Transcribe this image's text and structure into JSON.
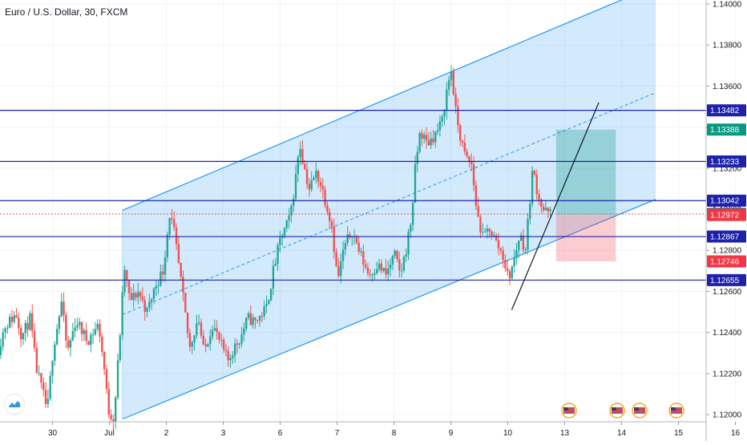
{
  "title": "Euro / U.S. Dollar, 30, FXCM",
  "chart_data": {
    "type": "candlestick",
    "ylim": [
      1.1197,
      1.1402
    ],
    "y_ticks": [
      "1.12000",
      "1.12200",
      "1.12400",
      "1.12600",
      "1.12800",
      "1.13000",
      "1.13200",
      "1.13400",
      "1.13600",
      "1.13800",
      "1.14000"
    ],
    "x_ticks": [
      {
        "label": "30",
        "day": -0.5
      },
      {
        "label": "Jul",
        "day": 0.5
      },
      {
        "label": "2",
        "day": 1.5
      },
      {
        "label": "3",
        "day": 2.5
      },
      {
        "label": "6",
        "day": 3.5
      },
      {
        "label": "7",
        "day": 4.5
      },
      {
        "label": "8",
        "day": 5.5
      },
      {
        "label": "9",
        "day": 6.5
      },
      {
        "label": "10",
        "day": 7.5
      },
      {
        "label": "13",
        "day": 8.5
      },
      {
        "label": "14",
        "day": 9.5
      },
      {
        "label": "15",
        "day": 10.5
      },
      {
        "label": "16",
        "day": 11.5
      }
    ],
    "horizontal_levels": [
      {
        "value": 1.13482,
        "label": "1.13482",
        "style": "line",
        "color": "#1e22aa"
      },
      {
        "value": 1.13233,
        "label": "1.13233",
        "style": "line",
        "color": "#1e22aa"
      },
      {
        "value": 1.13042,
        "label": "1.13042",
        "style": "line",
        "color": "#1e22aa"
      },
      {
        "value": 1.12867,
        "label": "1.12867",
        "style": "line",
        "color": "#1e22aa"
      },
      {
        "value": 1.12655,
        "label": "1.12655",
        "style": "line",
        "color": "#1e22aa"
      },
      {
        "value": 1.12977,
        "label": "1.12977",
        "style": "dotted",
        "color": "#ef5350"
      }
    ],
    "price_badges": [
      {
        "value": 1.13388,
        "label": "1.13388",
        "color": "#089981"
      },
      {
        "value": 1.12977,
        "label": "1.12977",
        "color": "#555555"
      },
      {
        "value": 1.12972,
        "label": "1.12972",
        "color": "#f23645"
      },
      {
        "value": 1.12746,
        "label": "1.12746",
        "color": "#f23645"
      }
    ],
    "channel": {
      "upper_start": {
        "day": 0.73,
        "price": 1.12995
      },
      "upper_end": {
        "day": 9.63,
        "price": 1.14035
      },
      "lower_start": {
        "day": 0.73,
        "price": 1.11978
      },
      "lower_end": {
        "day": 10.1,
        "price": 1.13048
      },
      "fill_right_day": 10.1,
      "color": "#2196f3"
    },
    "position": {
      "day_start": 8.35,
      "day_end": 9.4,
      "entry": 1.12972,
      "target": 1.13388,
      "stop": 1.12746
    },
    "trendline": {
      "start": {
        "day": 7.57,
        "price": 1.1251
      },
      "end": {
        "day": 9.1,
        "price": 1.1352
      }
    },
    "candles_ohlc_path": [
      [
        -1.45,
        1.1228
      ],
      [
        -1.3,
        1.1243
      ],
      [
        -1.1,
        1.1249
      ],
      [
        -1.0,
        1.1238
      ],
      [
        -0.85,
        1.1247
      ],
      [
        -0.75,
        1.1223
      ],
      [
        -0.55,
        1.1202
      ],
      [
        -0.45,
        1.1232
      ],
      [
        -0.3,
        1.1255
      ],
      [
        -0.2,
        1.123
      ],
      [
        -0.05,
        1.1246
      ],
      [
        0.15,
        1.1236
      ],
      [
        0.35,
        1.1244
      ],
      [
        0.45,
        1.1222
      ],
      [
        0.52,
        1.1202
      ],
      [
        0.62,
        1.1198
      ],
      [
        0.74,
        1.1245
      ],
      [
        0.8,
        1.1272
      ],
      [
        0.9,
        1.1255
      ],
      [
        1.05,
        1.126
      ],
      [
        1.2,
        1.125
      ],
      [
        1.35,
        1.1263
      ],
      [
        1.48,
        1.127
      ],
      [
        1.6,
        1.1298
      ],
      [
        1.68,
        1.1288
      ],
      [
        1.8,
        1.1264
      ],
      [
        1.95,
        1.1232
      ],
      [
        2.1,
        1.1248
      ],
      [
        2.2,
        1.123
      ],
      [
        2.35,
        1.1244
      ],
      [
        2.5,
        1.1234
      ],
      [
        2.62,
        1.1226
      ],
      [
        2.72,
        1.1232
      ],
      [
        2.85,
        1.1238
      ],
      [
        2.97,
        1.1247
      ],
      [
        3.1,
        1.1245
      ],
      [
        3.3,
        1.1252
      ],
      [
        3.42,
        1.127
      ],
      [
        3.55,
        1.1286
      ],
      [
        3.7,
        1.1295
      ],
      [
        3.8,
        1.1312
      ],
      [
        3.88,
        1.1333
      ],
      [
        3.95,
        1.1322
      ],
      [
        4.05,
        1.131
      ],
      [
        4.18,
        1.1318
      ],
      [
        4.3,
        1.1308
      ],
      [
        4.45,
        1.1292
      ],
      [
        4.55,
        1.1265
      ],
      [
        4.65,
        1.128
      ],
      [
        4.8,
        1.129
      ],
      [
        4.95,
        1.1278
      ],
      [
        5.1,
        1.1268
      ],
      [
        5.25,
        1.1273
      ],
      [
        5.4,
        1.1268
      ],
      [
        5.55,
        1.1278
      ],
      [
        5.65,
        1.1268
      ],
      [
        5.75,
        1.128
      ],
      [
        5.85,
        1.1296
      ],
      [
        5.92,
        1.1322
      ],
      [
        6.0,
        1.1338
      ],
      [
        6.12,
        1.1332
      ],
      [
        6.25,
        1.1336
      ],
      [
        6.38,
        1.1342
      ],
      [
        6.48,
        1.136
      ],
      [
        6.55,
        1.1368
      ],
      [
        6.62,
        1.1348
      ],
      [
        6.72,
        1.1333
      ],
      [
        6.8,
        1.1325
      ],
      [
        6.9,
        1.1322
      ],
      [
        7.0,
        1.1298
      ],
      [
        7.1,
        1.1286
      ],
      [
        7.22,
        1.1291
      ],
      [
        7.35,
        1.1283
      ],
      [
        7.45,
        1.1278
      ],
      [
        7.55,
        1.1266
      ],
      [
        7.65,
        1.1275
      ],
      [
        7.75,
        1.1288
      ],
      [
        7.85,
        1.128
      ],
      [
        7.93,
        1.1305
      ],
      [
        7.98,
        1.132
      ],
      [
        8.05,
        1.131
      ],
      [
        8.15,
        1.13
      ],
      [
        8.25,
        1.1298
      ]
    ]
  }
}
